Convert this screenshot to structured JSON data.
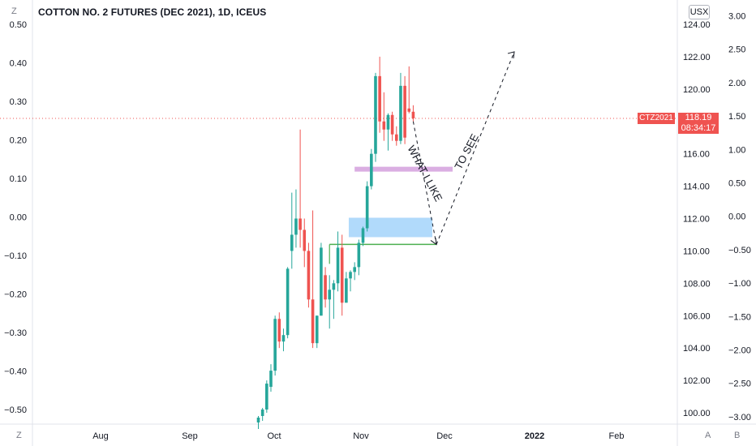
{
  "chart_data": {
    "type": "candlestick",
    "title": "COTTON NO. 2 FUTURES (DEC 2021), 1D, ICEUS",
    "unit": "USX",
    "right_axis": {
      "ticks": [
        "124.00",
        "122.00",
        "120.00",
        "118.00",
        "116.00",
        "114.00",
        "112.00",
        "110.00",
        "108.00",
        "106.00",
        "104.00",
        "102.00",
        "100.00"
      ],
      "range": [
        99.4,
        125.2
      ]
    },
    "left_axis": {
      "ticks": [
        "0.50",
        "0.40",
        "0.30",
        "0.20",
        "0.10",
        "0.00",
        "−0.10",
        "−0.20",
        "−0.30",
        "−0.40",
        "−0.50"
      ]
    },
    "far_right_axis": {
      "ticks": [
        "3.00",
        "2.50",
        "2.00",
        "1.50",
        "1.00",
        "0.50",
        "0.00",
        "−0.50",
        "−1.00",
        "−1.50",
        "−2.00",
        "−2.50",
        "−3.00"
      ]
    },
    "time_axis": [
      "Aug",
      "Sep",
      "Oct",
      "Nov",
      "Dec",
      "2022",
      "Feb"
    ],
    "corner_labels": {
      "bottom_left": "Z",
      "bottom_right_a": "A",
      "bottom_right_b": "B",
      "top_left": "Z"
    },
    "last_price": {
      "symbol": "CTZ2021",
      "price": "118.19",
      "countdown": "08:34:17",
      "value": 118.19
    },
    "candles": [
      {
        "o": 99.4,
        "h": 99.8,
        "l": 99.0,
        "c": 99.7
      },
      {
        "o": 99.8,
        "h": 100.3,
        "l": 99.5,
        "c": 100.2
      },
      {
        "o": 100.2,
        "h": 102.0,
        "l": 100.0,
        "c": 101.8
      },
      {
        "o": 101.6,
        "h": 103.0,
        "l": 101.3,
        "c": 102.6
      },
      {
        "o": 102.6,
        "h": 106.0,
        "l": 102.3,
        "c": 105.8
      },
      {
        "o": 105.8,
        "h": 106.2,
        "l": 104.0,
        "c": 104.4
      },
      {
        "o": 104.4,
        "h": 105.2,
        "l": 103.8,
        "c": 104.8
      },
      {
        "o": 104.8,
        "h": 109.0,
        "l": 104.6,
        "c": 108.9
      },
      {
        "o": 110.0,
        "h": 113.6,
        "l": 108.9,
        "c": 111.0
      },
      {
        "o": 111.0,
        "h": 113.8,
        "l": 110.2,
        "c": 112.0
      },
      {
        "o": 112.0,
        "h": 117.5,
        "l": 110.2,
        "c": 111.3
      },
      {
        "o": 111.3,
        "h": 112.0,
        "l": 109.0,
        "c": 110.0
      },
      {
        "o": 110.0,
        "h": 110.5,
        "l": 106.5,
        "c": 107.0
      },
      {
        "o": 107.0,
        "h": 112.5,
        "l": 104.0,
        "c": 104.3
      },
      {
        "o": 104.3,
        "h": 106.0,
        "l": 104.0,
        "c": 106.0
      },
      {
        "o": 106.0,
        "h": 110.5,
        "l": 106.0,
        "c": 110.2
      },
      {
        "o": 108.5,
        "h": 109.0,
        "l": 106.5,
        "c": 107.0
      },
      {
        "o": 107.0,
        "h": 108.5,
        "l": 105.2,
        "c": 107.6
      },
      {
        "o": 107.6,
        "h": 108.2,
        "l": 105.8,
        "c": 108.0
      },
      {
        "o": 108.0,
        "h": 111.2,
        "l": 107.5,
        "c": 110.2
      },
      {
        "o": 110.2,
        "h": 111.0,
        "l": 106.0,
        "c": 106.8
      },
      {
        "o": 106.8,
        "h": 108.7,
        "l": 106.8,
        "c": 108.3
      },
      {
        "o": 108.3,
        "h": 108.8,
        "l": 107.5,
        "c": 108.7
      },
      {
        "o": 108.7,
        "h": 109.3,
        "l": 108.2,
        "c": 109.0
      },
      {
        "o": 109.0,
        "h": 110.7,
        "l": 108.5,
        "c": 110.5
      },
      {
        "o": 110.5,
        "h": 111.5,
        "l": 110.3,
        "c": 111.4
      },
      {
        "o": 111.4,
        "h": 114.3,
        "l": 111.2,
        "c": 114.0
      },
      {
        "o": 114.0,
        "h": 116.3,
        "l": 113.8,
        "c": 116.0
      },
      {
        "o": 116.0,
        "h": 121.0,
        "l": 115.5,
        "c": 120.8
      },
      {
        "o": 120.8,
        "h": 122.0,
        "l": 117.3,
        "c": 118.0
      },
      {
        "o": 118.0,
        "h": 119.8,
        "l": 116.8,
        "c": 117.5
      },
      {
        "o": 117.5,
        "h": 118.5,
        "l": 116.2,
        "c": 118.4
      },
      {
        "o": 118.4,
        "h": 118.6,
        "l": 116.8,
        "c": 117.2
      },
      {
        "o": 117.2,
        "h": 117.7,
        "l": 116.5,
        "c": 116.8
      },
      {
        "o": 116.8,
        "h": 121.0,
        "l": 116.6,
        "c": 120.2
      },
      {
        "o": 120.2,
        "h": 120.8,
        "l": 116.6,
        "c": 117.0
      },
      {
        "o": 118.8,
        "h": 121.4,
        "l": 118.5,
        "c": 118.6
      },
      {
        "o": 118.6,
        "h": 119.0,
        "l": 118.0,
        "c": 118.19
      }
    ],
    "annotations": [
      {
        "type": "text",
        "label": "WHAT I LIKE"
      },
      {
        "type": "text",
        "label": "TO SEE"
      }
    ],
    "colors": {
      "up": "#26a69a",
      "down": "#ef5350",
      "zone_purple": "#ce93d8",
      "zone_blue": "#90caf9",
      "line_green": "#4caf50",
      "price_line": "#ef5350"
    }
  }
}
